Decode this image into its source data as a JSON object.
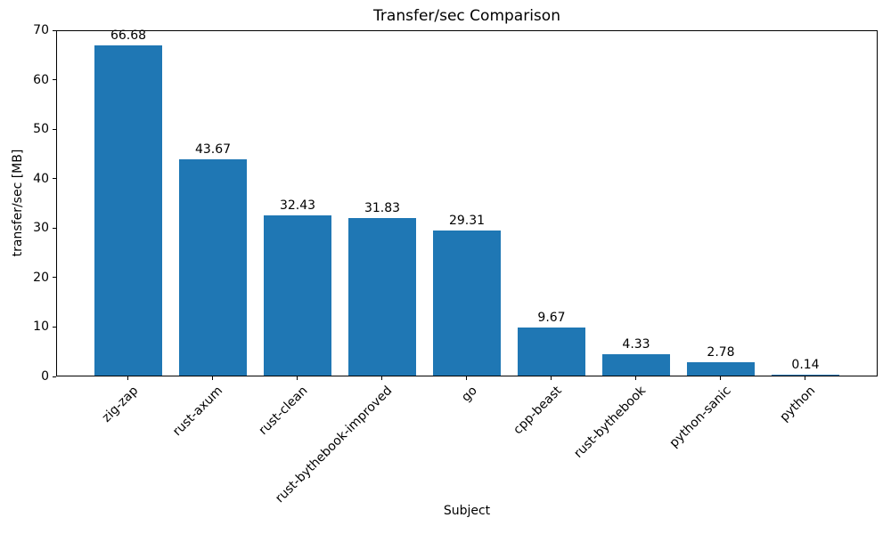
{
  "chart_data": {
    "type": "bar",
    "title": "Transfer/sec Comparison",
    "xlabel": "Subject",
    "ylabel": "transfer/sec [MB]",
    "categories": [
      "zig-zap",
      "rust-axum",
      "rust-clean",
      "rust-bythebook-improved",
      "go",
      "cpp-beast",
      "rust-bythebook",
      "python-sanic",
      "python"
    ],
    "values": [
      66.68,
      43.67,
      32.43,
      31.83,
      29.31,
      9.67,
      4.33,
      2.78,
      0.14
    ],
    "bar_labels": [
      "66.68",
      "43.67",
      "32.43",
      "31.83",
      "29.31",
      "9.67",
      "4.33",
      "2.78",
      "0.14"
    ],
    "ylim": [
      0,
      70
    ],
    "yticks": [
      0,
      10,
      20,
      30,
      40,
      50,
      60,
      70
    ],
    "ytick_labels": [
      "0",
      "10",
      "20",
      "30",
      "40",
      "50",
      "60",
      "70"
    ],
    "bar_color": "#1f77b4",
    "text_color": "#000000",
    "grid": false,
    "legend": null
  }
}
